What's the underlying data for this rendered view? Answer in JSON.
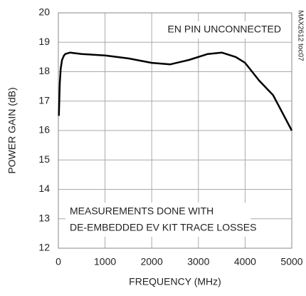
{
  "chart_data": {
    "type": "line",
    "x_label": "FREQUENCY (MHz)",
    "y_label": "POWER GAIN (dB)",
    "annotations": [
      "EN PIN UNCONNECTED",
      "MEASUREMENTS DONE WITH",
      "DE-EMBEDDED EV KIT TRACE LOSSES",
      "MAX2612 toc07"
    ],
    "series": [
      {
        "color": "#000000",
        "x": [
          10,
          30,
          50,
          80,
          120,
          150,
          250,
          500,
          1000,
          1500,
          2000,
          2400,
          2800,
          3200,
          3500,
          3800,
          4000,
          4300,
          4600,
          4800,
          5000
        ],
        "values": [
          16.5,
          17.6,
          18.1,
          18.4,
          18.55,
          18.6,
          18.65,
          18.6,
          18.55,
          18.45,
          18.3,
          18.25,
          18.4,
          18.6,
          18.65,
          18.5,
          18.3,
          17.7,
          17.2,
          16.6,
          16.0
        ]
      }
    ],
    "xlim": [
      0,
      5000
    ],
    "xticks": [
      0,
      1000,
      2000,
      3000,
      4000,
      5000
    ],
    "ylim": [
      12,
      20
    ],
    "yticks": [
      12,
      13,
      14,
      15,
      16,
      17,
      18,
      19,
      20
    ],
    "grid": true
  }
}
